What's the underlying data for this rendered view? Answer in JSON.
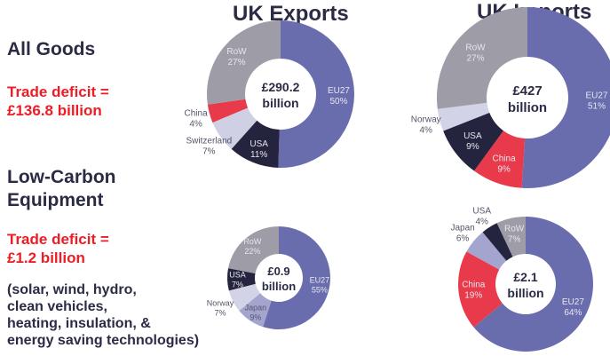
{
  "left": {
    "all_goods": "All Goods",
    "all_deficit_1": "Trade deficit =",
    "all_deficit_2": "£136.8 billion",
    "lc_title_1": "Low-Carbon",
    "lc_title_2": "Equipment",
    "lc_deficit_1": "Trade deficit =",
    "lc_deficit_2": "£1.2 billion",
    "lc_note": [
      "(solar, wind, hydro,",
      "clean vehicles,",
      "heating, insulation, &",
      "energy saving technologies)"
    ]
  },
  "colors": {
    "EU27": "#6a6dad",
    "USA": "#25243f",
    "Switzerland": "#cfd0e4",
    "Norway": "#d2d3e6",
    "Japan": "#a3a5cf",
    "China": "#e93a4b",
    "RoW": "#9d9ca7"
  },
  "chart_data": [
    {
      "type": "pie",
      "title": "UK Exports",
      "group": "All Goods",
      "center_label": [
        "£290.2",
        "billion"
      ],
      "slices": [
        {
          "name": "EU27",
          "value": 50
        },
        {
          "name": "USA",
          "value": 11
        },
        {
          "name": "Switzerland",
          "value": 7
        },
        {
          "name": "China",
          "value": 4
        },
        {
          "name": "RoW",
          "value": 27
        }
      ]
    },
    {
      "type": "pie",
      "title": "UK Imports",
      "group": "All Goods",
      "center_label": [
        "£427",
        "billion"
      ],
      "slices": [
        {
          "name": "EU27",
          "value": 51
        },
        {
          "name": "China",
          "value": 9
        },
        {
          "name": "USA",
          "value": 9
        },
        {
          "name": "Norway",
          "value": 4
        },
        {
          "name": "RoW",
          "value": 27
        }
      ]
    },
    {
      "type": "pie",
      "title": "UK Exports",
      "group": "Low-Carbon Equipment",
      "center_label": [
        "£0.9",
        "billion"
      ],
      "slices": [
        {
          "name": "EU27",
          "value": 55
        },
        {
          "name": "Japan",
          "value": 9
        },
        {
          "name": "Norway",
          "value": 7
        },
        {
          "name": "USA",
          "value": 7
        },
        {
          "name": "RoW",
          "value": 22
        }
      ]
    },
    {
      "type": "pie",
      "title": "UK Imports",
      "group": "Low-Carbon Equipment",
      "center_label": [
        "£2.1",
        "billion"
      ],
      "slices": [
        {
          "name": "EU27",
          "value": 64
        },
        {
          "name": "China",
          "value": 19
        },
        {
          "name": "Japan",
          "value": 6
        },
        {
          "name": "USA",
          "value": 4
        },
        {
          "name": "RoW",
          "value": 7
        }
      ]
    }
  ]
}
